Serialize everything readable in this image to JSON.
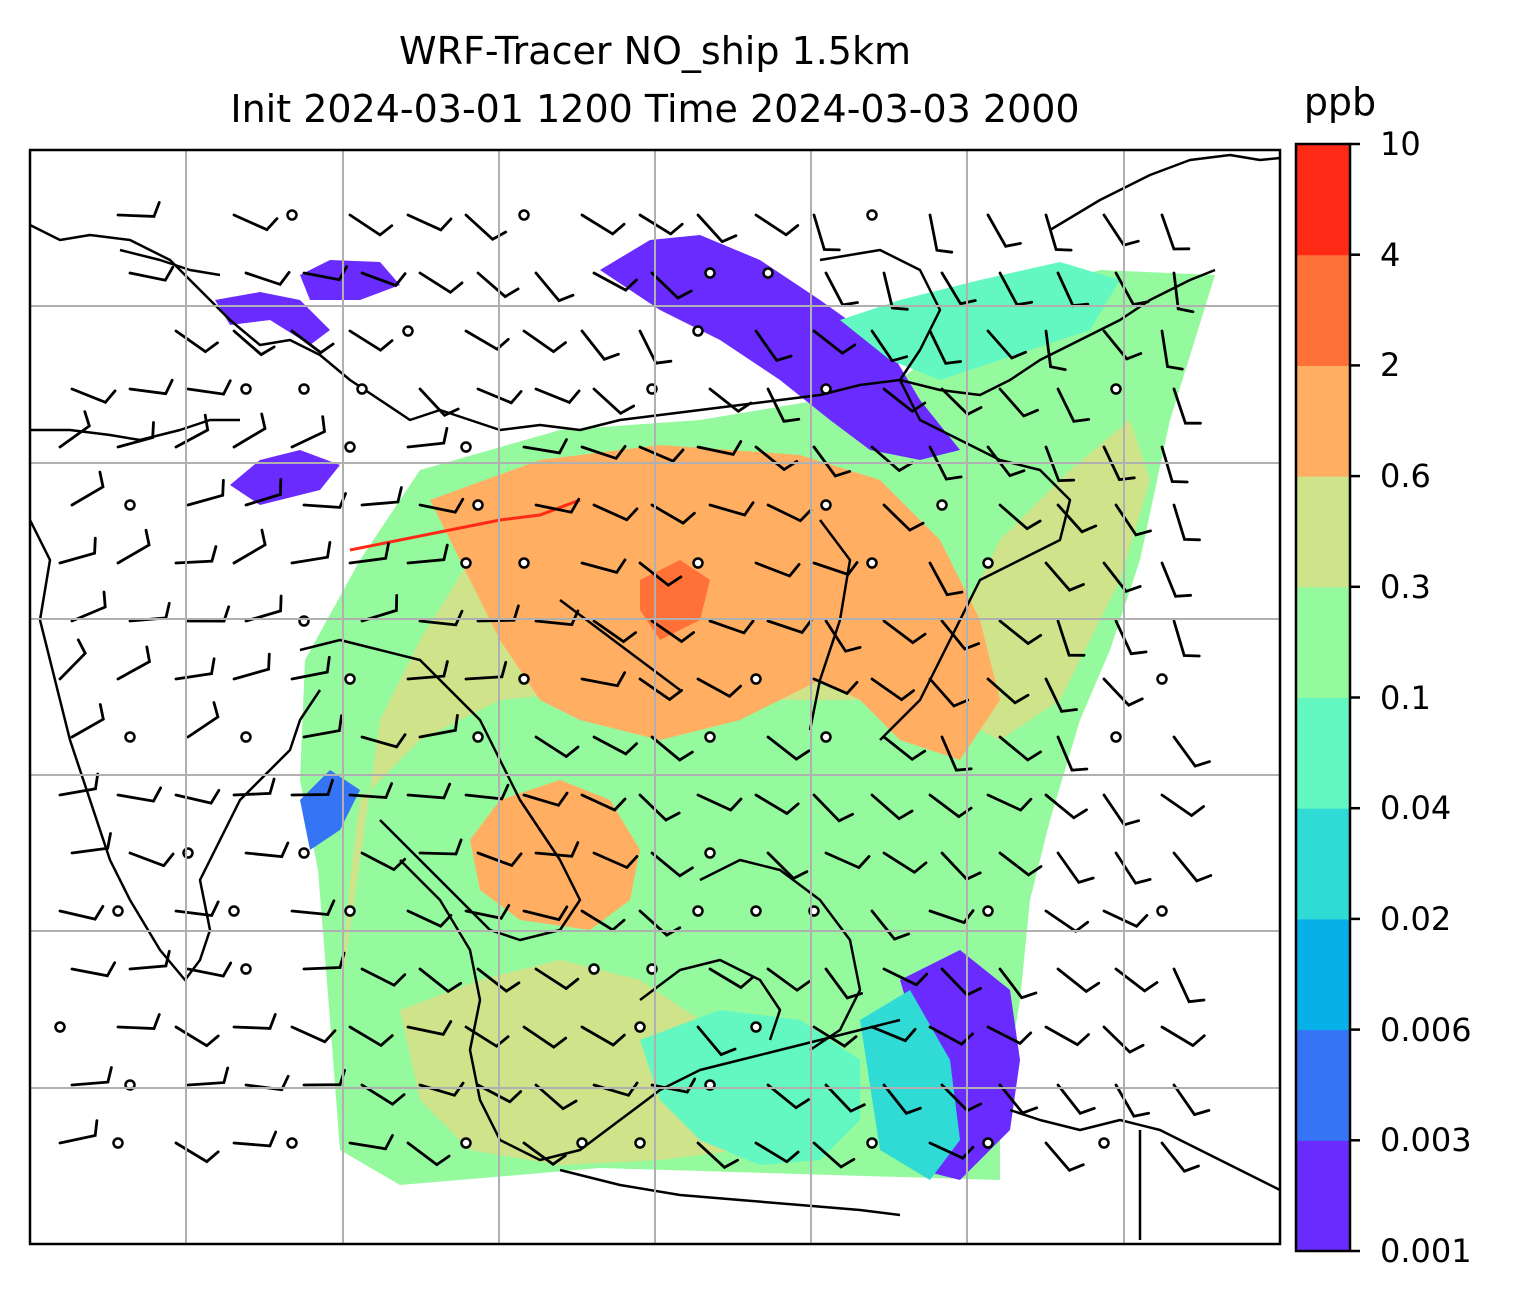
{
  "title": {
    "line1": "WRF-Tracer NO_ship 1.5km",
    "line2": "Init 2024-03-01 1200 Time 2024-03-03 2000"
  },
  "colorbar": {
    "unit": "ppb",
    "levels": [
      "0.001",
      "0.003",
      "0.006",
      "0.02",
      "0.04",
      "0.1",
      "0.3",
      "0.6",
      "2",
      "4",
      "10"
    ],
    "colors": [
      "#6a2bff",
      "#3575f5",
      "#08b0e8",
      "#30dbd6",
      "#63f8c2",
      "#95fa9e",
      "#cfe38a",
      "#ffae62",
      "#ff7137",
      "#ff2a16"
    ]
  },
  "map": {
    "background": "#ffffff",
    "gridline_color": "#b0b0b0",
    "coastline_color": "#000000"
  }
}
